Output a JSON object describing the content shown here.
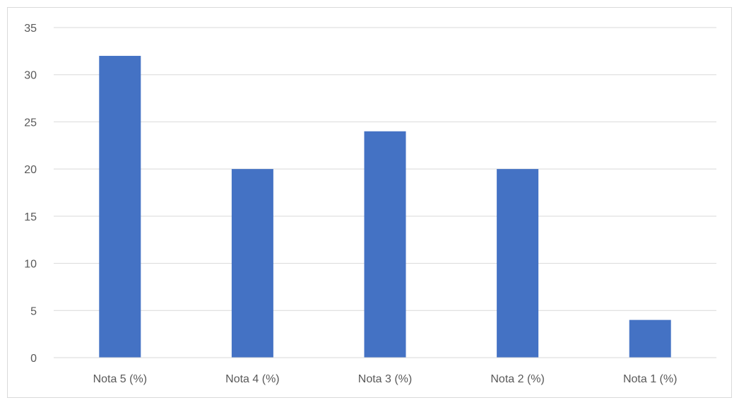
{
  "chart_data": {
    "type": "bar",
    "title": "",
    "xlabel": "",
    "ylabel": "",
    "categories": [
      "Nota 5 (%)",
      "Nota 4 (%)",
      "Nota 3 (%)",
      "Nota 2 (%)",
      "Nota 1 (%)"
    ],
    "values": [
      32,
      20,
      24,
      20,
      4
    ],
    "ylim": [
      0,
      35
    ],
    "yticks": [
      "0",
      "5",
      "10",
      "15",
      "20",
      "25",
      "30",
      "35"
    ],
    "grid": true,
    "legend": "none",
    "colors": {
      "bar": "#4472c4",
      "grid": "#d9d9d9",
      "axis": "#d9d9d9",
      "text": "#595959"
    }
  }
}
